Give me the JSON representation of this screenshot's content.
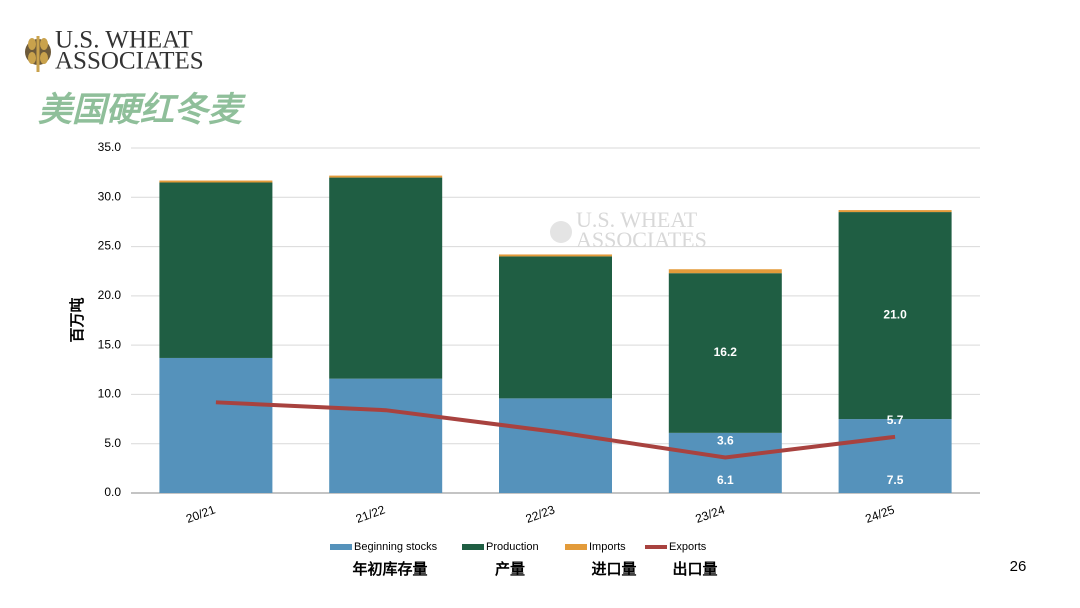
{
  "header": {
    "logo_line1": "U.S. WHEAT",
    "logo_line2": "ASSOCIATES",
    "title": "美国硬红冬麦"
  },
  "watermark": {
    "line1": "U.S. WHEAT",
    "line2": "ASSOCIATES"
  },
  "page_number": "26",
  "chart_data": {
    "type": "bar",
    "stacked": true,
    "y_label": "百万吨",
    "categories": [
      "20/21",
      "21/22",
      "22/23",
      "23/24",
      "24/25"
    ],
    "series": [
      {
        "name": "Beginning stocks",
        "label_cn": "年初库存量",
        "color": "#5592bb",
        "values": [
          13.7,
          11.6,
          9.6,
          6.1,
          7.5
        ],
        "value_labels": [
          null,
          null,
          null,
          "6.1",
          "7.5"
        ]
      },
      {
        "name": "Production",
        "label_cn": "产量",
        "color": "#1f5e43",
        "values": [
          17.8,
          20.4,
          14.4,
          16.2,
          21.0
        ],
        "value_labels": [
          null,
          null,
          null,
          "16.2",
          "21.0"
        ]
      },
      {
        "name": "Imports",
        "label_cn": "进口量",
        "color": "#e39b3a",
        "values": [
          0.2,
          0.2,
          0.2,
          0.4,
          0.2
        ]
      },
      {
        "name": "Exports",
        "label_cn": "出口量",
        "type": "line",
        "color": "#a8423f",
        "values": [
          9.2,
          8.4,
          6.2,
          3.6,
          5.7
        ],
        "value_labels": [
          null,
          null,
          null,
          "3.6",
          "5.7"
        ]
      }
    ],
    "ylim": [
      0,
      35
    ],
    "yticks": [
      {
        "value": 0,
        "label": "0.0"
      },
      {
        "value": 5,
        "label": "5.0"
      },
      {
        "value": 10,
        "label": "10.0"
      },
      {
        "value": 15,
        "label": "15.0"
      },
      {
        "value": 20,
        "label": "20.0"
      },
      {
        "value": 25,
        "label": "25.0"
      },
      {
        "value": 30,
        "label": "30.0"
      },
      {
        "value": 35,
        "label": "35.0"
      }
    ],
    "grid": true
  }
}
